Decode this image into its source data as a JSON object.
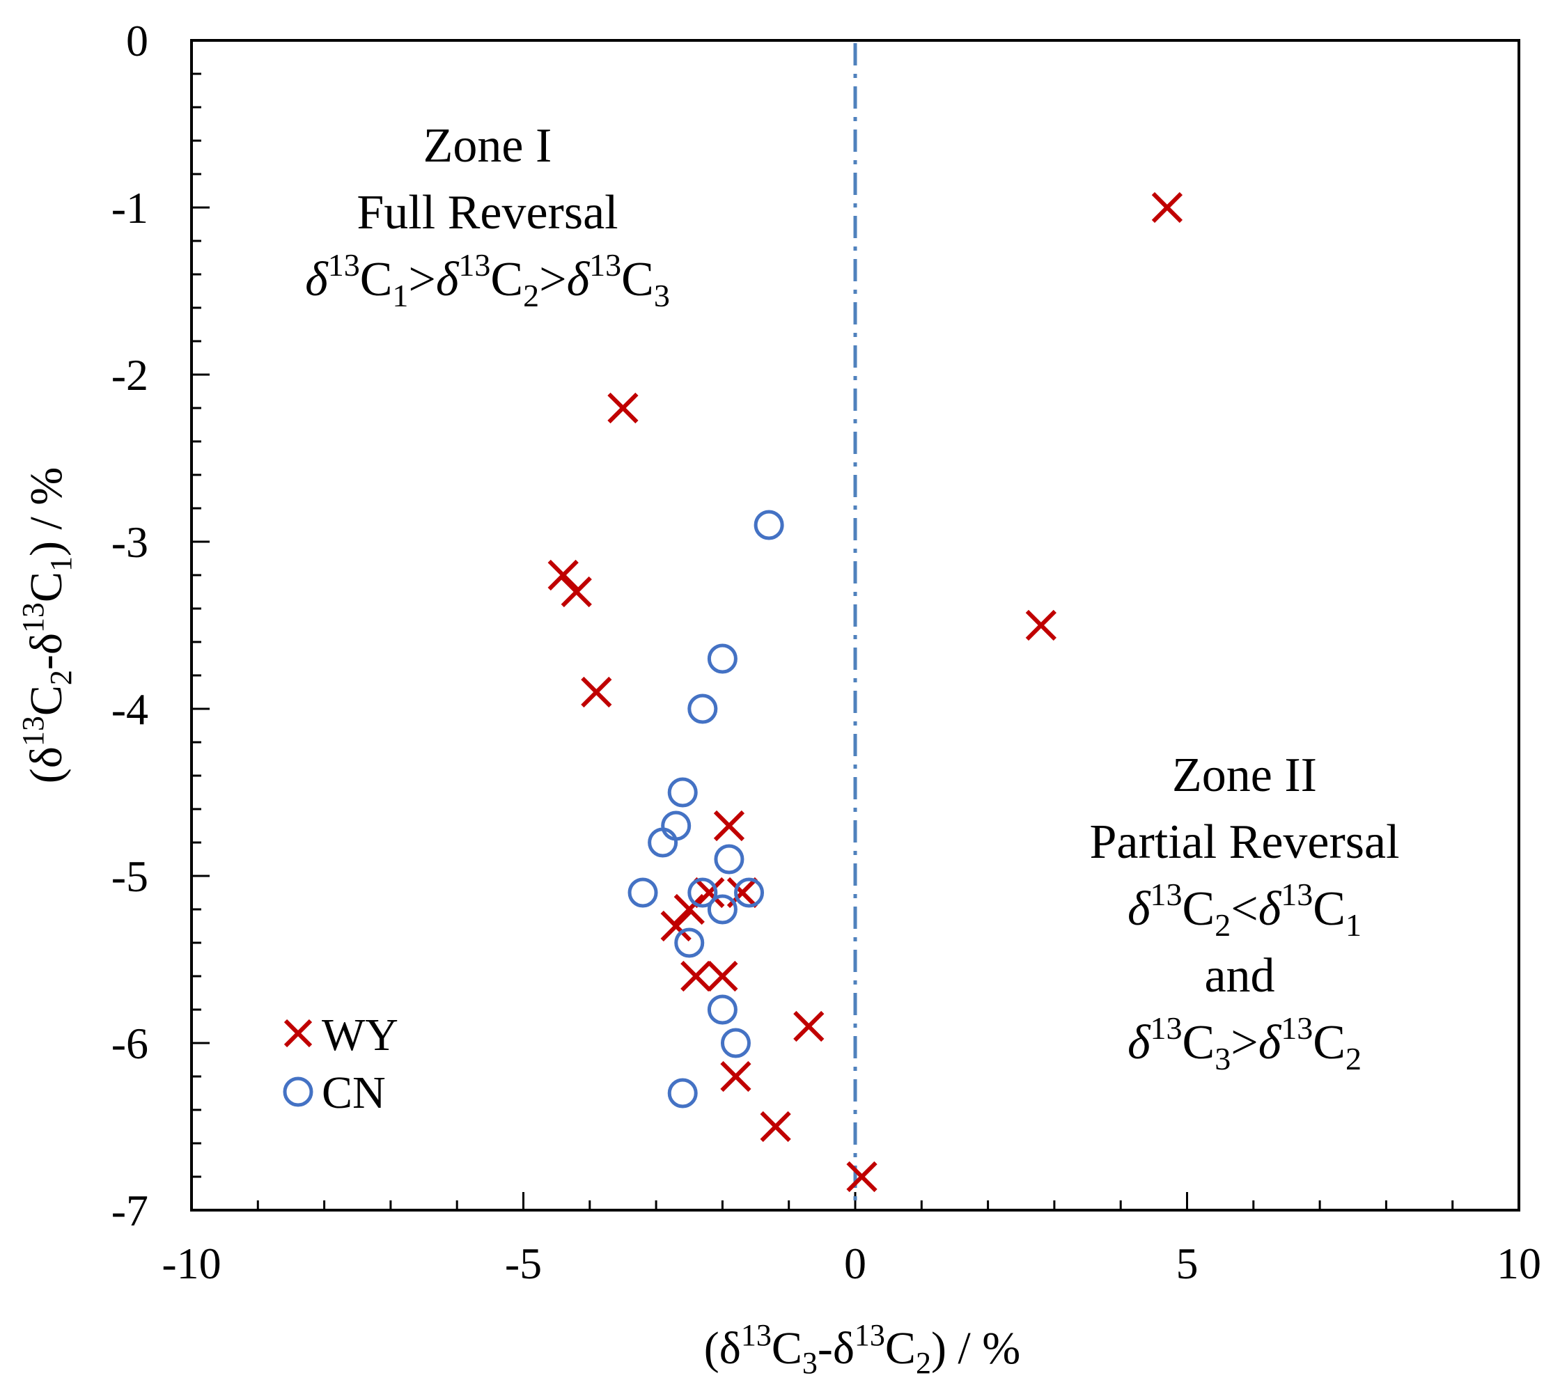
{
  "chart_data": {
    "type": "scatter",
    "xlabel": "(δ13C3-δ13C2) / %",
    "ylabel": "(δ13C2-δ13C1) / %",
    "xlim": [
      -10,
      10
    ],
    "ylim": [
      -7,
      0
    ],
    "xticks": [
      -10,
      -5,
      0,
      5,
      10
    ],
    "yticks": [
      0,
      -1,
      -2,
      -3,
      -4,
      -5,
      -6,
      -7
    ],
    "x_tick_labels": [
      "-10",
      "-5",
      "0",
      "5",
      "10"
    ],
    "y_tick_labels": [
      "0",
      "-1",
      "-2",
      "-3",
      "-4",
      "-5",
      "-6",
      "-7"
    ],
    "x_minor_step": 1,
    "y_minor_step": 0.2,
    "reference_line": {
      "x": 0,
      "style": "dash-dot",
      "color": "#4f81bd"
    },
    "series": [
      {
        "name": "WY",
        "marker": "x",
        "color": "#c00000",
        "points": [
          [
            4.7,
            -1.0
          ],
          [
            -3.5,
            -2.2
          ],
          [
            -4.4,
            -3.2
          ],
          [
            -4.2,
            -3.3
          ],
          [
            -3.9,
            -3.9
          ],
          [
            2.8,
            -3.5
          ],
          [
            -1.9,
            -4.7
          ],
          [
            -2.2,
            -5.1
          ],
          [
            -1.7,
            -5.1
          ],
          [
            -2.5,
            -5.2
          ],
          [
            -2.7,
            -5.3
          ],
          [
            -2.4,
            -5.6
          ],
          [
            -2.0,
            -5.6
          ],
          [
            -0.7,
            -5.9
          ],
          [
            -1.8,
            -6.2
          ],
          [
            -1.2,
            -6.5
          ],
          [
            0.1,
            -6.8
          ]
        ]
      },
      {
        "name": "CN",
        "marker": "o",
        "color": "#4472c4",
        "points": [
          [
            -1.3,
            -2.9
          ],
          [
            -2.0,
            -3.7
          ],
          [
            -2.3,
            -4.0
          ],
          [
            -2.6,
            -4.5
          ],
          [
            -2.7,
            -4.7
          ],
          [
            -2.9,
            -4.8
          ],
          [
            -1.9,
            -4.9
          ],
          [
            -3.2,
            -5.1
          ],
          [
            -2.3,
            -5.1
          ],
          [
            -1.6,
            -5.1
          ],
          [
            -2.0,
            -5.2
          ],
          [
            -2.5,
            -5.4
          ],
          [
            -2.0,
            -5.8
          ],
          [
            -1.8,
            -6.0
          ],
          [
            -2.6,
            -6.3
          ]
        ]
      }
    ],
    "legend": {
      "position": "bottom-left",
      "entries": [
        "WY",
        "CN"
      ]
    },
    "annotations": [
      {
        "zone": "I",
        "lines": [
          "Zone I",
          "Full Reversal",
          "δ13C1>δ13C2>δ13C3"
        ],
        "position": "upper-left"
      },
      {
        "zone": "II",
        "lines": [
          "Zone II",
          "Partial Reversal",
          "δ13C2<δ13C1",
          "and",
          "δ13C3>δ13C2"
        ],
        "position": "lower-right"
      }
    ]
  }
}
